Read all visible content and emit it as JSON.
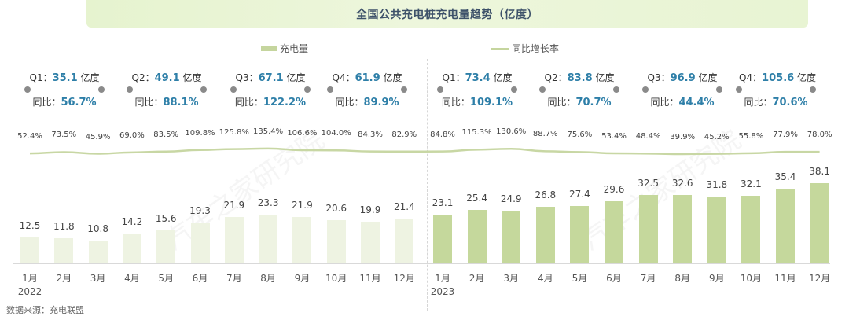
{
  "title": "全国公共充电桩充电量趋势（亿度）",
  "legend": {
    "bar_label": "充电量",
    "line_label": "同比增长率"
  },
  "colors": {
    "bar_2022": "#eef3e2",
    "bar_2023": "#c5d89c",
    "line": "#c8d7a4",
    "highlight_value": "#2e7fa8",
    "title_text": "#3d5169",
    "banner_bg": "#e8f4d3"
  },
  "quarters": [
    {
      "q": "Q1：",
      "value": "35.1",
      "unit": " 亿度",
      "yoy_label": "同比：",
      "yoy": "56.7%"
    },
    {
      "q": "Q2：",
      "value": "49.1",
      "unit": " 亿度",
      "yoy_label": "同比：",
      "yoy": "88.1%"
    },
    {
      "q": "Q3：",
      "value": "67.1",
      "unit": " 亿度",
      "yoy_label": "同比：",
      "yoy": "122.2%"
    },
    {
      "q": "Q4：",
      "value": "61.9",
      "unit": " 亿度",
      "yoy_label": "同比：",
      "yoy": "89.9%"
    },
    {
      "q": "Q1：",
      "value": "73.4",
      "unit": " 亿度",
      "yoy_label": "同比：",
      "yoy": "109.1%"
    },
    {
      "q": "Q2：",
      "value": "83.8",
      "unit": " 亿度",
      "yoy_label": "同比：",
      "yoy": "70.7%"
    },
    {
      "q": "Q3：",
      "value": "96.9",
      "unit": " 亿度",
      "yoy_label": "同比：",
      "yoy": "44.4%"
    },
    {
      "q": "Q4：",
      "value": "105.6",
      "unit": " 亿度",
      "yoy_label": "同比：",
      "yoy": "70.6%"
    }
  ],
  "chart_data": {
    "type": "bar",
    "title": "全国公共充电桩充电量趋势（亿度）",
    "xlabel": "",
    "ylabel": "亿度",
    "categories": [
      "1月",
      "2月",
      "3月",
      "4月",
      "5月",
      "6月",
      "7月",
      "8月",
      "9月",
      "10月",
      "11月",
      "12月",
      "1月",
      "2月",
      "3月",
      "4月",
      "5月",
      "6月",
      "7月",
      "8月",
      "9月",
      "10月",
      "11月",
      "12月"
    ],
    "year_labels": [
      {
        "index": 0,
        "label": "2022"
      },
      {
        "index": 12,
        "label": "2023"
      }
    ],
    "series": [
      {
        "name": "充电量",
        "type": "bar",
        "values": [
          12.5,
          11.8,
          10.8,
          14.2,
          15.6,
          19.3,
          21.9,
          23.3,
          21.9,
          20.6,
          19.9,
          21.4,
          23.1,
          25.4,
          24.9,
          26.8,
          27.4,
          29.6,
          32.5,
          32.6,
          31.8,
          32.1,
          35.4,
          38.1
        ],
        "labels": [
          "12.5",
          "11.8",
          "10.8",
          "14.2",
          "15.6",
          "19.3",
          "21.9",
          "23.3",
          "21.9",
          "20.6",
          "19.9",
          "21.4",
          "23.1",
          "25.4",
          "24.9",
          "26.8",
          "27.4",
          "29.6",
          "32.5",
          "32.6",
          "31.8",
          "32.1",
          "35.4",
          "38.1"
        ]
      },
      {
        "name": "同比增长率",
        "type": "line",
        "unit": "%",
        "values": [
          52.4,
          73.5,
          45.9,
          69.0,
          83.5,
          109.8,
          125.8,
          135.4,
          106.6,
          104.0,
          84.3,
          82.9,
          84.8,
          115.3,
          130.6,
          88.7,
          75.6,
          53.4,
          48.4,
          39.9,
          45.2,
          55.8,
          77.9,
          78.0
        ],
        "labels": [
          "52.4%",
          "73.5%",
          "45.9%",
          "69.0%",
          "83.5%",
          "109.8%",
          "125.8%",
          "135.4%",
          "106.6%",
          "104.0%",
          "84.3%",
          "82.9%",
          "84.8%",
          "115.3%",
          "130.6%",
          "88.7%",
          "75.6%",
          "53.4%",
          "48.4%",
          "39.9%",
          "45.2%",
          "55.8%",
          "77.9%",
          "78.0%"
        ]
      }
    ],
    "ylim": [
      0,
      40
    ],
    "grid": false,
    "legend_position": "top"
  },
  "source": "数据来源：充电联盟",
  "watermark": "汽车之家研究院"
}
